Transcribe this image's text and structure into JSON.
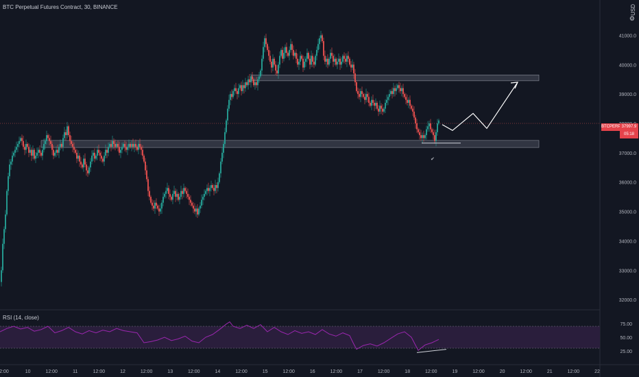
{
  "header": {
    "title": "BTC Perpetual Futures Contract, 30, BINANCE",
    "currency": "USD"
  },
  "price_axis": {
    "labels": [
      "41000.0",
      "40000.0",
      "39000.0",
      "38000.0",
      "37000.0",
      "36000.0",
      "35000.0",
      "34000.0",
      "33000.0",
      "32000.0"
    ],
    "values": [
      41000,
      40000,
      39000,
      38000,
      37000,
      36000,
      35000,
      34000,
      33000,
      32000
    ]
  },
  "last_price": {
    "symbol": "BTCPERP",
    "value": "37997.9",
    "countdown": "05:18"
  },
  "rsi": {
    "title": "RSI (14, close)",
    "labels": [
      "75.00",
      "50.00",
      "25.00"
    ],
    "values": [
      75,
      50,
      25
    ]
  },
  "time_axis": {
    "labels": [
      "2:00",
      "10",
      "12:00",
      "11",
      "12:00",
      "12",
      "12:00",
      "13",
      "12:00",
      "14",
      "12:00",
      "15",
      "12:00",
      "16",
      "12:00",
      "17",
      "12:00",
      "18",
      "12:00",
      "19",
      "12:00",
      "20",
      "12:00",
      "21",
      "12:00",
      "22"
    ]
  },
  "colors": {
    "background": "#131722",
    "up": "#26a69a",
    "down": "#ef5350",
    "rsi_line": "#9c27b0",
    "rsi_band": "#2a1e3c",
    "zone": "#4a4e5c",
    "annotation": "#ffffff",
    "last_price_tag": "#e5434b"
  },
  "icons": {
    "gear": "gear-icon"
  },
  "chart_data": {
    "type": "candlestick",
    "x_range": [
      "9 12:00",
      "22"
    ],
    "ylim": [
      31700,
      42200
    ],
    "series_path": [
      [
        0,
        32600
      ],
      [
        2,
        33000
      ],
      [
        4,
        33900
      ],
      [
        6,
        34400
      ],
      [
        8,
        34900
      ],
      [
        10,
        35700
      ],
      [
        12,
        36200
      ],
      [
        14,
        36600
      ],
      [
        16,
        36700
      ],
      [
        18,
        36900
      ],
      [
        20,
        37000
      ],
      [
        22,
        37100
      ],
      [
        24,
        37200
      ],
      [
        26,
        37300
      ],
      [
        28,
        37400
      ],
      [
        30,
        37500
      ],
      [
        32,
        37400
      ],
      [
        34,
        37200
      ],
      [
        36,
        37100
      ],
      [
        38,
        37300
      ],
      [
        40,
        37200
      ],
      [
        42,
        37000
      ],
      [
        44,
        37100
      ],
      [
        46,
        36900
      ],
      [
        48,
        37100
      ],
      [
        50,
        36800
      ],
      [
        52,
        36900
      ],
      [
        54,
        37000
      ],
      [
        56,
        37100
      ],
      [
        58,
        37000
      ],
      [
        60,
        36900
      ],
      [
        62,
        37100
      ],
      [
        64,
        37300
      ],
      [
        66,
        37400
      ],
      [
        68,
        37600
      ],
      [
        70,
        37500
      ],
      [
        72,
        37400
      ],
      [
        74,
        37300
      ],
      [
        76,
        37100
      ],
      [
        78,
        36900
      ],
      [
        80,
        37000
      ],
      [
        82,
        37100
      ],
      [
        84,
        37000
      ],
      [
        86,
        37200
      ],
      [
        88,
        37300
      ],
      [
        90,
        37200
      ],
      [
        92,
        37500
      ],
      [
        94,
        37700
      ],
      [
        96,
        37600
      ],
      [
        98,
        37900
      ],
      [
        100,
        37600
      ],
      [
        102,
        37400
      ],
      [
        104,
        37300
      ],
      [
        106,
        37200
      ],
      [
        108,
        37100
      ],
      [
        110,
        37000
      ],
      [
        112,
        36800
      ],
      [
        114,
        36900
      ],
      [
        116,
        36700
      ],
      [
        118,
        36600
      ],
      [
        120,
        36500
      ],
      [
        122,
        36800
      ],
      [
        124,
        36600
      ],
      [
        126,
        36400
      ],
      [
        128,
        36300
      ],
      [
        130,
        36500
      ],
      [
        132,
        36700
      ],
      [
        134,
        36900
      ],
      [
        136,
        37000
      ],
      [
        138,
        36800
      ],
      [
        140,
        36900
      ],
      [
        142,
        37100
      ],
      [
        144,
        37000
      ],
      [
        146,
        36900
      ],
      [
        148,
        36800
      ],
      [
        150,
        36700
      ],
      [
        152,
        36900
      ],
      [
        154,
        37100
      ],
      [
        156,
        37000
      ],
      [
        158,
        37200
      ],
      [
        160,
        37300
      ],
      [
        162,
        37200
      ],
      [
        164,
        37400
      ],
      [
        166,
        37300
      ],
      [
        168,
        37200
      ],
      [
        170,
        37300
      ],
      [
        172,
        37200
      ],
      [
        174,
        37000
      ],
      [
        176,
        37100
      ],
      [
        178,
        37200
      ],
      [
        180,
        37300
      ],
      [
        182,
        37200
      ],
      [
        184,
        37100
      ],
      [
        186,
        37200
      ],
      [
        188,
        37300
      ],
      [
        190,
        37200
      ],
      [
        192,
        37300
      ],
      [
        194,
        37200
      ],
      [
        196,
        37300
      ],
      [
        198,
        37200
      ],
      [
        200,
        37100
      ],
      [
        202,
        37300
      ],
      [
        204,
        37200
      ],
      [
        206,
        37100
      ],
      [
        208,
        36900
      ],
      [
        210,
        36700
      ],
      [
        212,
        36400
      ],
      [
        214,
        36100
      ],
      [
        216,
        35700
      ],
      [
        218,
        35500
      ],
      [
        220,
        35300
      ],
      [
        222,
        35200
      ],
      [
        224,
        35100
      ],
      [
        226,
        35300
      ],
      [
        228,
        35200
      ],
      [
        230,
        35100
      ],
      [
        232,
        35000
      ],
      [
        234,
        35100
      ],
      [
        236,
        35300
      ],
      [
        238,
        35500
      ],
      [
        240,
        35600
      ],
      [
        242,
        35700
      ],
      [
        244,
        35800
      ],
      [
        246,
        35600
      ],
      [
        248,
        35500
      ],
      [
        250,
        35400
      ],
      [
        252,
        35600
      ],
      [
        254,
        35700
      ],
      [
        256,
        35500
      ],
      [
        258,
        35600
      ],
      [
        260,
        35400
      ],
      [
        262,
        35500
      ],
      [
        264,
        35700
      ],
      [
        266,
        35600
      ],
      [
        268,
        35800
      ],
      [
        270,
        35700
      ],
      [
        272,
        35600
      ],
      [
        274,
        35500
      ],
      [
        276,
        35400
      ],
      [
        278,
        35300
      ],
      [
        280,
        35200
      ],
      [
        282,
        35100
      ],
      [
        284,
        35000
      ],
      [
        286,
        35100
      ],
      [
        288,
        34900
      ],
      [
        290,
        35100
      ],
      [
        292,
        35200
      ],
      [
        294,
        35400
      ],
      [
        296,
        35500
      ],
      [
        298,
        35600
      ],
      [
        300,
        35700
      ],
      [
        302,
        35800
      ],
      [
        304,
        35700
      ],
      [
        306,
        35800
      ],
      [
        308,
        35900
      ],
      [
        310,
        35800
      ],
      [
        312,
        35700
      ],
      [
        314,
        35900
      ],
      [
        316,
        35800
      ],
      [
        318,
        36000
      ],
      [
        320,
        36300
      ],
      [
        322,
        36700
      ],
      [
        324,
        37000
      ],
      [
        326,
        37300
      ],
      [
        328,
        37700
      ],
      [
        330,
        38100
      ],
      [
        332,
        38500
      ],
      [
        334,
        38800
      ],
      [
        336,
        39000
      ],
      [
        338,
        38900
      ],
      [
        340,
        39100
      ],
      [
        342,
        39200
      ],
      [
        344,
        39100
      ],
      [
        346,
        39000
      ],
      [
        348,
        39200
      ],
      [
        350,
        39300
      ],
      [
        352,
        39100
      ],
      [
        354,
        39300
      ],
      [
        356,
        39200
      ],
      [
        358,
        39400
      ],
      [
        360,
        39300
      ],
      [
        362,
        39500
      ],
      [
        364,
        39400
      ],
      [
        366,
        39600
      ],
      [
        368,
        39500
      ],
      [
        370,
        39300
      ],
      [
        372,
        39400
      ],
      [
        374,
        39300
      ],
      [
        376,
        39500
      ],
      [
        378,
        39600
      ],
      [
        380,
        39800
      ],
      [
        382,
        40200
      ],
      [
        384,
        40600
      ],
      [
        386,
        40900
      ],
      [
        388,
        40700
      ],
      [
        390,
        40500
      ],
      [
        392,
        40300
      ],
      [
        394,
        40100
      ],
      [
        396,
        39900
      ],
      [
        398,
        40200
      ],
      [
        400,
        40000
      ],
      [
        402,
        39800
      ],
      [
        404,
        39700
      ],
      [
        406,
        40000
      ],
      [
        408,
        40300
      ],
      [
        410,
        40500
      ],
      [
        412,
        40200
      ],
      [
        414,
        40400
      ],
      [
        416,
        40600
      ],
      [
        418,
        40400
      ],
      [
        420,
        40300
      ],
      [
        422,
        40500
      ],
      [
        424,
        40700
      ],
      [
        426,
        40500
      ],
      [
        428,
        40300
      ],
      [
        430,
        40400
      ],
      [
        432,
        40200
      ],
      [
        434,
        40000
      ],
      [
        436,
        40100
      ],
      [
        438,
        40300
      ],
      [
        440,
        40200
      ],
      [
        442,
        39900
      ],
      [
        444,
        40100
      ],
      [
        446,
        40200
      ],
      [
        448,
        40400
      ],
      [
        450,
        40200
      ],
      [
        452,
        40000
      ],
      [
        454,
        40300
      ],
      [
        456,
        40100
      ],
      [
        458,
        40000
      ],
      [
        460,
        40300
      ],
      [
        462,
        40500
      ],
      [
        464,
        40700
      ],
      [
        466,
        40900
      ],
      [
        468,
        41000
      ],
      [
        470,
        40800
      ],
      [
        472,
        40300
      ],
      [
        474,
        40100
      ],
      [
        476,
        40200
      ],
      [
        478,
        40000
      ],
      [
        480,
        40200
      ],
      [
        482,
        40400
      ],
      [
        484,
        40300
      ],
      [
        486,
        40100
      ],
      [
        488,
        40200
      ],
      [
        490,
        40000
      ],
      [
        492,
        40100
      ],
      [
        494,
        40200
      ],
      [
        496,
        40000
      ],
      [
        498,
        40100
      ],
      [
        500,
        40300
      ],
      [
        502,
        40200
      ],
      [
        504,
        40100
      ],
      [
        506,
        40300
      ],
      [
        508,
        40200
      ],
      [
        510,
        40000
      ],
      [
        512,
        39900
      ],
      [
        514,
        40000
      ],
      [
        516,
        39700
      ],
      [
        518,
        39400
      ],
      [
        520,
        39100
      ],
      [
        522,
        39000
      ],
      [
        524,
        38900
      ],
      [
        526,
        39100
      ],
      [
        528,
        39000
      ],
      [
        530,
        38900
      ],
      [
        532,
        38800
      ],
      [
        534,
        39000
      ],
      [
        536,
        38900
      ],
      [
        538,
        38700
      ],
      [
        540,
        38600
      ],
      [
        542,
        38800
      ],
      [
        544,
        38700
      ],
      [
        546,
        38600
      ],
      [
        548,
        38700
      ],
      [
        550,
        38500
      ],
      [
        552,
        38400
      ],
      [
        554,
        38600
      ],
      [
        556,
        38500
      ],
      [
        558,
        38400
      ],
      [
        560,
        38500
      ],
      [
        562,
        38700
      ],
      [
        564,
        38800
      ],
      [
        566,
        38900
      ],
      [
        568,
        39000
      ],
      [
        570,
        39100
      ],
      [
        572,
        39000
      ],
      [
        574,
        39200
      ],
      [
        576,
        39100
      ],
      [
        578,
        39200
      ],
      [
        580,
        39300
      ],
      [
        582,
        39200
      ],
      [
        584,
        39100
      ],
      [
        586,
        39200
      ],
      [
        588,
        39000
      ],
      [
        590,
        38900
      ],
      [
        592,
        38800
      ],
      [
        594,
        38700
      ],
      [
        596,
        38800
      ],
      [
        598,
        38600
      ],
      [
        600,
        38500
      ],
      [
        602,
        38400
      ],
      [
        604,
        38200
      ],
      [
        606,
        38000
      ],
      [
        608,
        37800
      ],
      [
        610,
        37700
      ],
      [
        612,
        37600
      ],
      [
        614,
        37500
      ],
      [
        616,
        37600
      ],
      [
        618,
        37500
      ],
      [
        620,
        37600
      ],
      [
        622,
        37800
      ],
      [
        624,
        37900
      ],
      [
        626,
        38000
      ],
      [
        628,
        37800
      ],
      [
        630,
        37700
      ],
      [
        632,
        37600
      ],
      [
        634,
        37400
      ],
      [
        636,
        37700
      ],
      [
        638,
        38000
      ],
      [
        640,
        38100
      ]
    ],
    "rsi_series": [
      [
        0,
        60
      ],
      [
        10,
        66
      ],
      [
        20,
        70
      ],
      [
        30,
        65
      ],
      [
        40,
        68
      ],
      [
        50,
        61
      ],
      [
        60,
        64
      ],
      [
        70,
        70
      ],
      [
        80,
        58
      ],
      [
        90,
        62
      ],
      [
        100,
        68
      ],
      [
        110,
        60
      ],
      [
        120,
        56
      ],
      [
        130,
        62
      ],
      [
        140,
        58
      ],
      [
        150,
        63
      ],
      [
        160,
        60
      ],
      [
        170,
        66
      ],
      [
        180,
        62
      ],
      [
        190,
        60
      ],
      [
        200,
        58
      ],
      [
        210,
        40
      ],
      [
        220,
        42
      ],
      [
        230,
        45
      ],
      [
        240,
        50
      ],
      [
        250,
        44
      ],
      [
        260,
        47
      ],
      [
        270,
        52
      ],
      [
        280,
        43
      ],
      [
        290,
        40
      ],
      [
        300,
        50
      ],
      [
        310,
        55
      ],
      [
        320,
        64
      ],
      [
        330,
        74
      ],
      [
        335,
        78
      ],
      [
        340,
        70
      ],
      [
        350,
        66
      ],
      [
        360,
        72
      ],
      [
        370,
        66
      ],
      [
        380,
        73
      ],
      [
        390,
        60
      ],
      [
        400,
        68
      ],
      [
        410,
        60
      ],
      [
        420,
        55
      ],
      [
        430,
        62
      ],
      [
        440,
        57
      ],
      [
        450,
        60
      ],
      [
        460,
        55
      ],
      [
        470,
        64
      ],
      [
        480,
        56
      ],
      [
        490,
        52
      ],
      [
        500,
        58
      ],
      [
        510,
        53
      ],
      [
        515,
        40
      ],
      [
        520,
        28
      ],
      [
        530,
        35
      ],
      [
        540,
        38
      ],
      [
        550,
        34
      ],
      [
        560,
        40
      ],
      [
        570,
        48
      ],
      [
        580,
        56
      ],
      [
        590,
        60
      ],
      [
        600,
        50
      ],
      [
        605,
        38
      ],
      [
        610,
        26
      ],
      [
        620,
        36
      ],
      [
        630,
        40
      ],
      [
        640,
        46
      ]
    ],
    "zones": [
      {
        "name": "resistance",
        "y_top": 39650,
        "y_bottom": 39450
      },
      {
        "name": "support",
        "y_top": 37420,
        "y_bottom": 37180
      }
    ],
    "projection": [
      [
        645,
        37960
      ],
      [
        660,
        37760
      ],
      [
        690,
        38340
      ],
      [
        710,
        37830
      ],
      [
        755,
        39400
      ]
    ]
  }
}
